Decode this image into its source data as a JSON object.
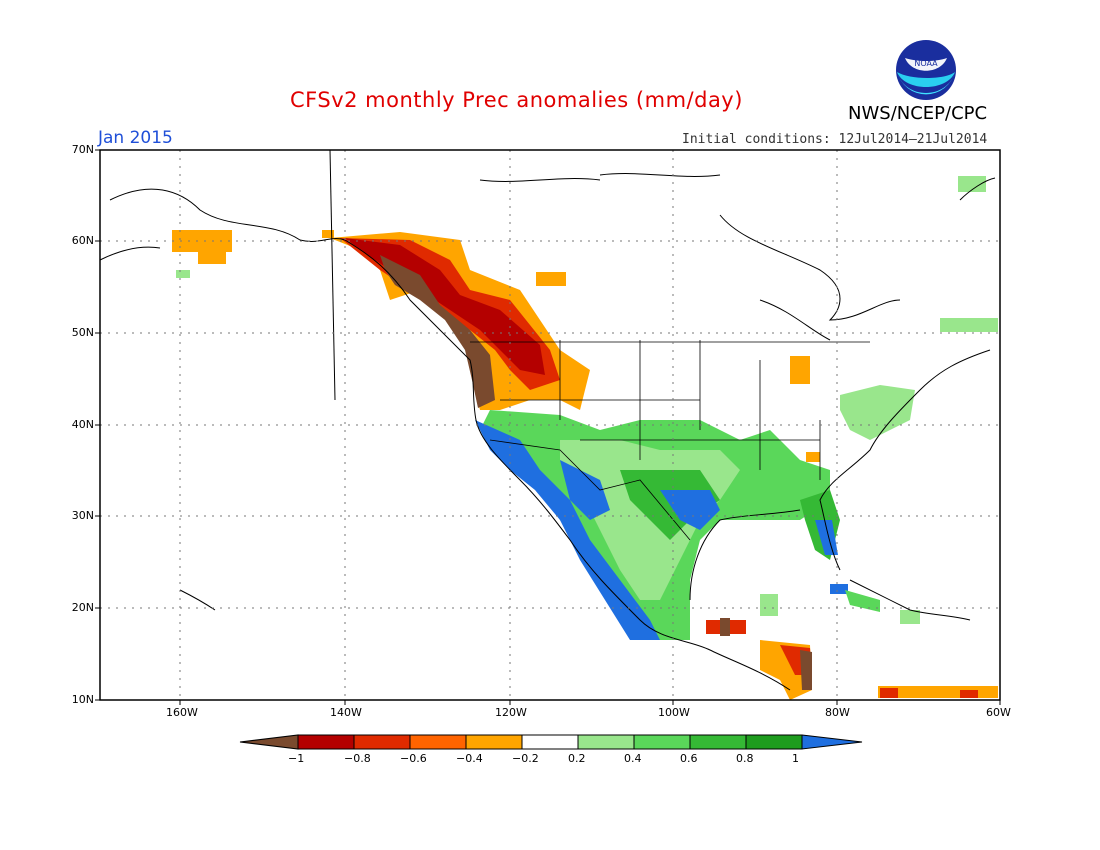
{
  "header": {
    "title": "CFSv2 monthly Prec anomalies (mm/day)",
    "month": "Jan 2015",
    "initial_conditions": "Initial conditions: 12Jul2014–21Jul2014",
    "agency": "NWS/NCEP/CPC",
    "logo_text": "NOAA"
  },
  "axes": {
    "lat_labels": [
      "70N",
      "60N",
      "50N",
      "40N",
      "30N",
      "20N",
      "10N"
    ],
    "lon_labels": [
      "160W",
      "140W",
      "120W",
      "100W",
      "80W",
      "60W"
    ]
  },
  "colorbar": {
    "labels": [
      "−1",
      "−0.8",
      "−0.6",
      "−0.4",
      "−0.2",
      "0.2",
      "0.4",
      "0.6",
      "0.8",
      "1"
    ],
    "colors": [
      "#7a4a2e",
      "#b40000",
      "#e02a00",
      "#ff6400",
      "#ffa500",
      "#ffffff",
      "#99e68c",
      "#5ad75a",
      "#35b935",
      "#1e9c1e",
      "#1f6fe0"
    ]
  }
}
